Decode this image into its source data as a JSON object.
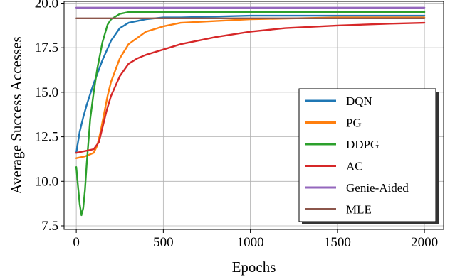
{
  "chart_data": {
    "type": "line",
    "title": "",
    "xlabel": "Epochs",
    "ylabel": "Average Success Accesses",
    "xlim": [
      -70,
      2110
    ],
    "ylim": [
      7.3,
      20.1
    ],
    "xticks": [
      0,
      500,
      1000,
      1500,
      2000
    ],
    "yticks": [
      7.5,
      10.0,
      12.5,
      15.0,
      17.5,
      20.0
    ],
    "xtick_labels": [
      "0",
      "500",
      "1000",
      "1500",
      "2000"
    ],
    "ytick_labels": [
      "7.5",
      "10.0",
      "12.5",
      "15.0",
      "17.5",
      "20.0"
    ],
    "grid": true,
    "legend_position": "lower-right",
    "series": [
      {
        "name": "DQN",
        "color": "#1f77b4",
        "x": [
          0,
          20,
          40,
          60,
          80,
          100,
          150,
          200,
          250,
          300,
          400,
          500,
          600,
          800,
          1000,
          1200,
          1500,
          1800,
          2000
        ],
        "y": [
          11.6,
          12.8,
          13.6,
          14.3,
          14.9,
          15.5,
          16.8,
          17.9,
          18.6,
          18.9,
          19.1,
          19.2,
          19.2,
          19.25,
          19.3,
          19.3,
          19.3,
          19.3,
          19.3
        ]
      },
      {
        "name": "PG",
        "color": "#ff7f0e",
        "x": [
          0,
          50,
          100,
          120,
          140,
          160,
          180,
          200,
          250,
          300,
          400,
          500,
          600,
          800,
          1000,
          1500,
          2000
        ],
        "y": [
          11.3,
          11.4,
          11.6,
          12.0,
          12.8,
          13.8,
          14.8,
          15.6,
          16.9,
          17.7,
          18.4,
          18.7,
          18.9,
          19.0,
          19.1,
          19.2,
          19.2
        ]
      },
      {
        "name": "DDPG",
        "color": "#2ca02c",
        "x": [
          0,
          10,
          20,
          30,
          40,
          50,
          60,
          80,
          100,
          120,
          150,
          180,
          200,
          250,
          300,
          400,
          500,
          700,
          1000,
          1500,
          2000
        ],
        "y": [
          10.8,
          9.7,
          8.7,
          8.1,
          8.5,
          9.5,
          11.0,
          13.5,
          15.0,
          16.3,
          17.8,
          18.8,
          19.1,
          19.4,
          19.5,
          19.5,
          19.5,
          19.5,
          19.5,
          19.5,
          19.5
        ]
      },
      {
        "name": "AC",
        "color": "#d62728",
        "x": [
          0,
          50,
          100,
          130,
          150,
          175,
          200,
          250,
          300,
          350,
          400,
          500,
          600,
          700,
          800,
          1000,
          1200,
          1500,
          1800,
          2000
        ],
        "y": [
          11.6,
          11.7,
          11.8,
          12.2,
          13.0,
          14.0,
          14.8,
          15.9,
          16.6,
          16.9,
          17.1,
          17.4,
          17.7,
          17.9,
          18.1,
          18.4,
          18.6,
          18.75,
          18.85,
          18.9
        ]
      },
      {
        "name": "Genie-Aided",
        "color": "#9467bd",
        "x": [
          0,
          2000
        ],
        "y": [
          19.75,
          19.75
        ]
      },
      {
        "name": "MLE",
        "color": "#8c564b",
        "x": [
          0,
          2000
        ],
        "y": [
          19.15,
          19.15
        ]
      }
    ]
  }
}
